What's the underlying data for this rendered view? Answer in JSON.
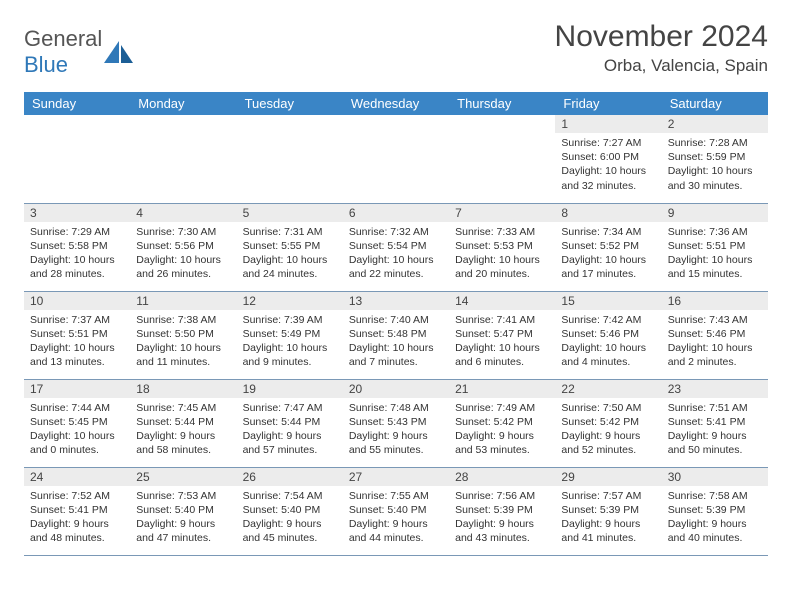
{
  "brand": {
    "word1": "General",
    "word2": "Blue"
  },
  "title": "November 2024",
  "location": "Orba, Valencia, Spain",
  "colors": {
    "header_bg": "#3a85c6",
    "header_text": "#ffffff",
    "daynum_bg": "#ececec",
    "border": "#7a98b6",
    "brand_blue": "#2f78b8"
  },
  "day_headers": [
    "Sunday",
    "Monday",
    "Tuesday",
    "Wednesday",
    "Thursday",
    "Friday",
    "Saturday"
  ],
  "weeks": [
    [
      null,
      null,
      null,
      null,
      null,
      {
        "n": "1",
        "sunrise": "7:27 AM",
        "sunset": "6:00 PM",
        "daylight": "10 hours and 32 minutes."
      },
      {
        "n": "2",
        "sunrise": "7:28 AM",
        "sunset": "5:59 PM",
        "daylight": "10 hours and 30 minutes."
      }
    ],
    [
      {
        "n": "3",
        "sunrise": "7:29 AM",
        "sunset": "5:58 PM",
        "daylight": "10 hours and 28 minutes."
      },
      {
        "n": "4",
        "sunrise": "7:30 AM",
        "sunset": "5:56 PM",
        "daylight": "10 hours and 26 minutes."
      },
      {
        "n": "5",
        "sunrise": "7:31 AM",
        "sunset": "5:55 PM",
        "daylight": "10 hours and 24 minutes."
      },
      {
        "n": "6",
        "sunrise": "7:32 AM",
        "sunset": "5:54 PM",
        "daylight": "10 hours and 22 minutes."
      },
      {
        "n": "7",
        "sunrise": "7:33 AM",
        "sunset": "5:53 PM",
        "daylight": "10 hours and 20 minutes."
      },
      {
        "n": "8",
        "sunrise": "7:34 AM",
        "sunset": "5:52 PM",
        "daylight": "10 hours and 17 minutes."
      },
      {
        "n": "9",
        "sunrise": "7:36 AM",
        "sunset": "5:51 PM",
        "daylight": "10 hours and 15 minutes."
      }
    ],
    [
      {
        "n": "10",
        "sunrise": "7:37 AM",
        "sunset": "5:51 PM",
        "daylight": "10 hours and 13 minutes."
      },
      {
        "n": "11",
        "sunrise": "7:38 AM",
        "sunset": "5:50 PM",
        "daylight": "10 hours and 11 minutes."
      },
      {
        "n": "12",
        "sunrise": "7:39 AM",
        "sunset": "5:49 PM",
        "daylight": "10 hours and 9 minutes."
      },
      {
        "n": "13",
        "sunrise": "7:40 AM",
        "sunset": "5:48 PM",
        "daylight": "10 hours and 7 minutes."
      },
      {
        "n": "14",
        "sunrise": "7:41 AM",
        "sunset": "5:47 PM",
        "daylight": "10 hours and 6 minutes."
      },
      {
        "n": "15",
        "sunrise": "7:42 AM",
        "sunset": "5:46 PM",
        "daylight": "10 hours and 4 minutes."
      },
      {
        "n": "16",
        "sunrise": "7:43 AM",
        "sunset": "5:46 PM",
        "daylight": "10 hours and 2 minutes."
      }
    ],
    [
      {
        "n": "17",
        "sunrise": "7:44 AM",
        "sunset": "5:45 PM",
        "daylight": "10 hours and 0 minutes."
      },
      {
        "n": "18",
        "sunrise": "7:45 AM",
        "sunset": "5:44 PM",
        "daylight": "9 hours and 58 minutes."
      },
      {
        "n": "19",
        "sunrise": "7:47 AM",
        "sunset": "5:44 PM",
        "daylight": "9 hours and 57 minutes."
      },
      {
        "n": "20",
        "sunrise": "7:48 AM",
        "sunset": "5:43 PM",
        "daylight": "9 hours and 55 minutes."
      },
      {
        "n": "21",
        "sunrise": "7:49 AM",
        "sunset": "5:42 PM",
        "daylight": "9 hours and 53 minutes."
      },
      {
        "n": "22",
        "sunrise": "7:50 AM",
        "sunset": "5:42 PM",
        "daylight": "9 hours and 52 minutes."
      },
      {
        "n": "23",
        "sunrise": "7:51 AM",
        "sunset": "5:41 PM",
        "daylight": "9 hours and 50 minutes."
      }
    ],
    [
      {
        "n": "24",
        "sunrise": "7:52 AM",
        "sunset": "5:41 PM",
        "daylight": "9 hours and 48 minutes."
      },
      {
        "n": "25",
        "sunrise": "7:53 AM",
        "sunset": "5:40 PM",
        "daylight": "9 hours and 47 minutes."
      },
      {
        "n": "26",
        "sunrise": "7:54 AM",
        "sunset": "5:40 PM",
        "daylight": "9 hours and 45 minutes."
      },
      {
        "n": "27",
        "sunrise": "7:55 AM",
        "sunset": "5:40 PM",
        "daylight": "9 hours and 44 minutes."
      },
      {
        "n": "28",
        "sunrise": "7:56 AM",
        "sunset": "5:39 PM",
        "daylight": "9 hours and 43 minutes."
      },
      {
        "n": "29",
        "sunrise": "7:57 AM",
        "sunset": "5:39 PM",
        "daylight": "9 hours and 41 minutes."
      },
      {
        "n": "30",
        "sunrise": "7:58 AM",
        "sunset": "5:39 PM",
        "daylight": "9 hours and 40 minutes."
      }
    ]
  ],
  "labels": {
    "sunrise": "Sunrise:",
    "sunset": "Sunset:",
    "daylight": "Daylight:"
  }
}
